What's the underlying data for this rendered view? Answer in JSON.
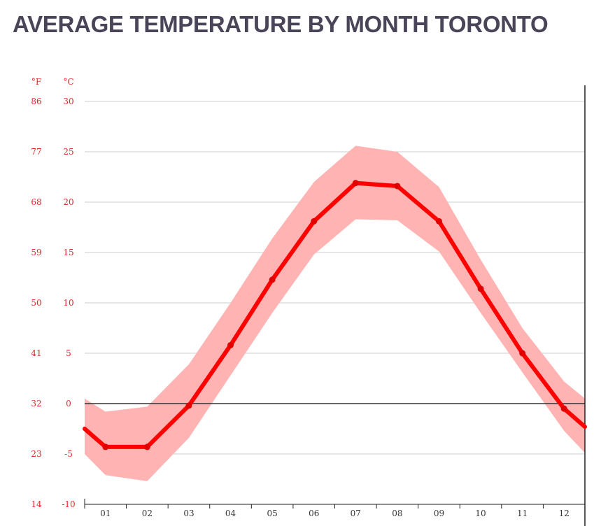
{
  "title": "AVERAGE TEMPERATURE BY MONTH TORONTO",
  "colors": {
    "title": "#4a4458",
    "axis_label": "#e0282a",
    "mean_line": "#ff0000",
    "range_band": "#ffb3b3",
    "grid": "#cccccc",
    "zero_line": "#333333",
    "axis": "#222222"
  },
  "chart_data": {
    "type": "line",
    "title": "AVERAGE TEMPERATURE BY MONTH TORONTO",
    "units": {
      "left": "°F",
      "right": "°C"
    },
    "categories": [
      "01",
      "02",
      "03",
      "04",
      "05",
      "06",
      "07",
      "08",
      "09",
      "10",
      "11",
      "12"
    ],
    "ylim": [
      -10,
      30
    ],
    "yticks_c": [
      30,
      25,
      20,
      15,
      10,
      5,
      0,
      -5,
      -10
    ],
    "yticks_f": [
      86,
      77,
      68,
      59,
      50,
      41,
      32,
      23,
      14
    ],
    "grid": true,
    "series": [
      {
        "role": "mean",
        "x": [
          0.5,
          1,
          2,
          3,
          4,
          5,
          6,
          7,
          8,
          9,
          10,
          11,
          12,
          12.5
        ],
        "values": [
          -2.5,
          -4.3,
          -4.3,
          -0.2,
          5.8,
          12.3,
          18.1,
          21.9,
          21.6,
          18.1,
          11.4,
          5.0,
          -0.5,
          -2.3
        ]
      },
      {
        "role": "range_high",
        "x": [
          0.5,
          1,
          2,
          3,
          4,
          5,
          6,
          7,
          8,
          9,
          10,
          11,
          12,
          12.5
        ],
        "values": [
          0.5,
          -0.8,
          -0.3,
          3.9,
          10.0,
          16.4,
          22.0,
          25.6,
          25.0,
          21.5,
          14.3,
          7.5,
          2.2,
          0.5
        ]
      },
      {
        "role": "range_low",
        "x": [
          0.5,
          1,
          2,
          3,
          4,
          5,
          6,
          7,
          8,
          9,
          10,
          11,
          12,
          12.5
        ],
        "values": [
          -5.0,
          -7.1,
          -7.7,
          -3.4,
          2.8,
          9.0,
          14.8,
          18.3,
          18.2,
          15.1,
          9.0,
          3.1,
          -2.7,
          -4.9
        ]
      }
    ]
  }
}
